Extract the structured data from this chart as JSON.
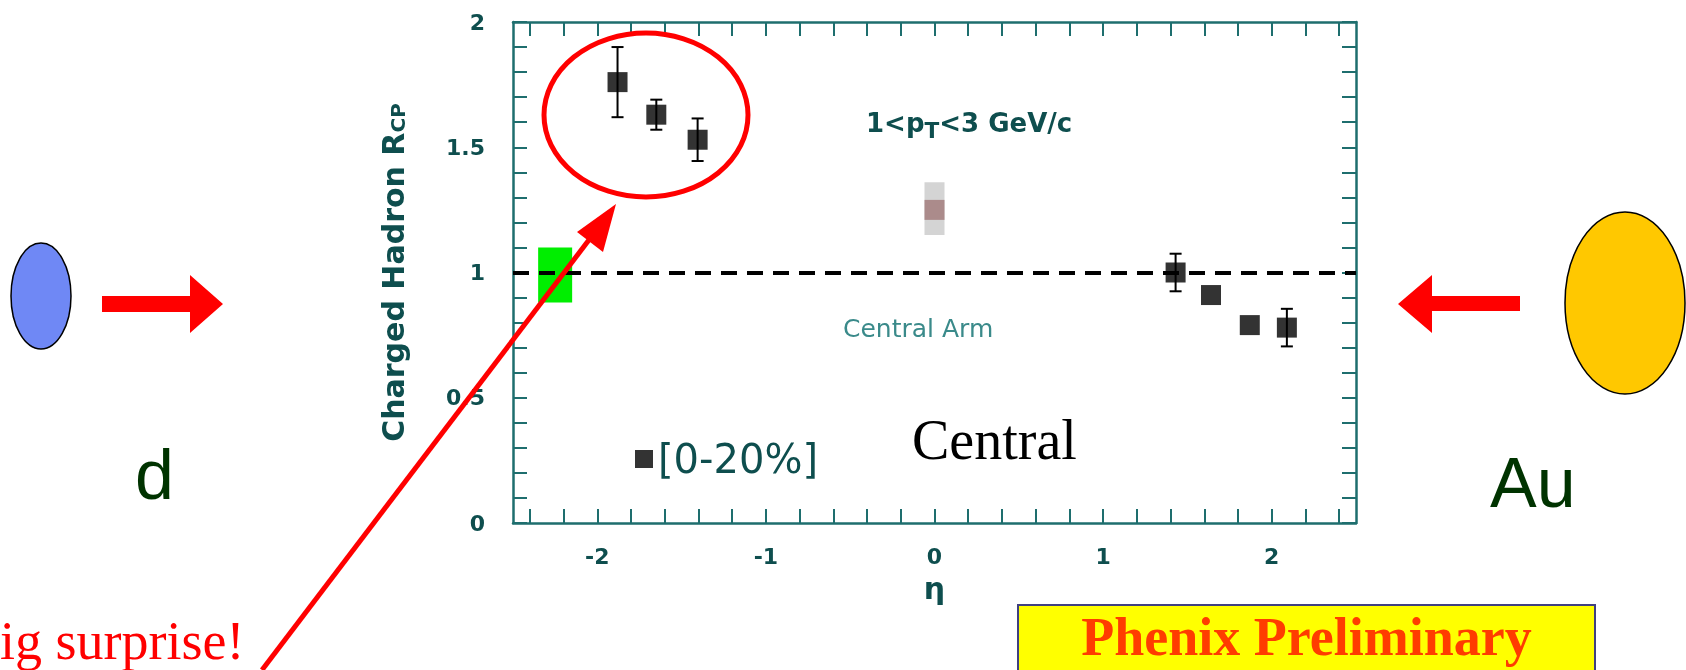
{
  "chart_data": {
    "type": "scatter",
    "xlabel": "η",
    "ylabel": "Charged Hadron R$_{CP}$",
    "xlim": [
      -2.5,
      2.5
    ],
    "xticks": [
      {
        "value": -2.4,
        "label": null
      },
      {
        "value": -2.2,
        "label": null
      },
      -2,
      {
        "value": -1.8,
        "label": null
      },
      {
        "value": -1.6,
        "label": null
      },
      {
        "value": -1.4,
        "label": null
      },
      {
        "value": -1.2,
        "label": null
      },
      -1,
      {
        "value": -0.8,
        "label": null
      },
      {
        "value": -0.6,
        "label": null
      },
      {
        "value": -0.4,
        "label": null
      },
      {
        "value": -0.2,
        "label": null
      },
      0,
      {
        "value": 0.2,
        "label": null
      },
      {
        "value": 0.4,
        "label": null
      },
      {
        "value": 0.6,
        "label": null
      },
      {
        "value": 0.8,
        "label": null
      },
      1,
      {
        "value": 1.2,
        "label": null
      },
      {
        "value": 1.4,
        "label": null
      },
      {
        "value": 1.6,
        "label": null
      },
      {
        "value": 1.8,
        "label": null
      },
      2,
      {
        "value": 2.2,
        "label": null
      },
      {
        "value": 2.4,
        "label": null
      }
    ],
    "ylim": [
      0,
      2
    ],
    "yticks": [
      0,
      {
        "value": 0.1,
        "label": null
      },
      {
        "value": 0.2,
        "label": null
      },
      {
        "value": 0.3,
        "label": null
      },
      {
        "value": 0.4,
        "label": null
      },
      0.5,
      {
        "value": 0.6,
        "label": null
      },
      {
        "value": 0.7,
        "label": null
      },
      {
        "value": 0.8,
        "label": null
      },
      {
        "value": 0.9,
        "label": null
      },
      1,
      {
        "value": 1.1,
        "label": null
      },
      {
        "value": 1.2,
        "label": null
      },
      {
        "value": 1.3,
        "label": null
      },
      {
        "value": 1.4,
        "label": null
      },
      1.5,
      {
        "value": 1.6,
        "label": null
      },
      {
        "value": 1.7,
        "label": null
      },
      {
        "value": 1.8,
        "label": null
      },
      {
        "value": 1.9,
        "label": null
      },
      2
    ],
    "grid": false,
    "legend": "bottom left",
    "marker": "square",
    "series": [
      {
        "type": "bar",
        "color": "#00ee00",
        "x": [
          -2.25
        ],
        "base": [
          0.88
        ],
        "values": [
          0.22
        ]
      },
      {
        "type": "bar",
        "color": "#d4d4d4",
        "x": [
          0
        ],
        "base": [
          1.15
        ],
        "values": [
          0.21
        ]
      },
      {
        "color": "#a07878",
        "x": [
          0
        ],
        "values": [
          1.25
        ]
      },
      {
        "name": "[0-20%]",
        "color": "#000000",
        "x": [
          -1.88,
          -1.65,
          -1.405,
          1.43,
          1.64,
          1.87,
          2.09
        ],
        "values": [
          1.76,
          1.63,
          1.53,
          1.0,
          0.91,
          0.79,
          0.78
        ],
        "errors": [
          0.14,
          0.06,
          0.085,
          0.075,
          null,
          null,
          0.075
        ]
      }
    ],
    "ref_lines": [
      {
        "axis": "y",
        "value": 1,
        "color": "#000000",
        "line_style": "dashed"
      }
    ],
    "annotations": [
      "1<p$_{T}$<3 GeV/c",
      "Central Arm",
      "Central",
      "Phenix Preliminary",
      "d",
      "Au",
      "ig surprise!"
    ]
  }
}
